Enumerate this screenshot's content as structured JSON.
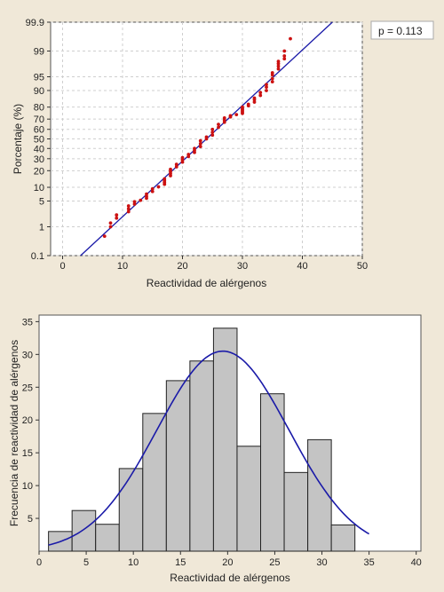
{
  "chart_data": [
    {
      "type": "scatter",
      "subtype": "normal-probability-plot",
      "title": "",
      "xlabel": "Reactividad de alérgenos",
      "ylabel": "Porcentaje (%)",
      "xlim": [
        -2,
        50
      ],
      "xticks": [
        0,
        10,
        20,
        30,
        40,
        50
      ],
      "yscale": "normal-probability",
      "yticks": [
        0.1,
        1,
        5,
        10,
        20,
        30,
        40,
        50,
        60,
        70,
        80,
        90,
        95,
        99,
        99.9
      ],
      "ytick_labels": [
        "0.1",
        "1",
        "5",
        "10",
        "20",
        "30",
        "40",
        "50",
        "60",
        "70",
        "80",
        "90",
        "95",
        "99",
        "99.9"
      ],
      "grid": true,
      "annotation": "p = 0.113",
      "point_color": "#cc1111",
      "fit_color": "#1a1aa8",
      "fit_line": {
        "x": [
          3,
          45
        ],
        "y": [
          0.1,
          99.9
        ]
      },
      "points": [
        {
          "x": 7,
          "y": 0.5
        },
        {
          "x": 8,
          "y": 1.0
        },
        {
          "x": 8,
          "y": 1.3
        },
        {
          "x": 9,
          "y": 1.8
        },
        {
          "x": 9,
          "y": 2.2
        },
        {
          "x": 11,
          "y": 2.7
        },
        {
          "x": 11,
          "y": 3.2
        },
        {
          "x": 11,
          "y": 3.8
        },
        {
          "x": 12,
          "y": 4.2
        },
        {
          "x": 12,
          "y": 4.8
        },
        {
          "x": 13,
          "y": 5.2
        },
        {
          "x": 14,
          "y": 5.8
        },
        {
          "x": 14,
          "y": 6.4
        },
        {
          "x": 14,
          "y": 7.2
        },
        {
          "x": 15,
          "y": 8.2
        },
        {
          "x": 15,
          "y": 9.3
        },
        {
          "x": 16,
          "y": 10.2
        },
        {
          "x": 17,
          "y": 11.5
        },
        {
          "x": 17,
          "y": 12.5
        },
        {
          "x": 17,
          "y": 13.5
        },
        {
          "x": 17,
          "y": 14.5
        },
        {
          "x": 18,
          "y": 16.5
        },
        {
          "x": 18,
          "y": 18
        },
        {
          "x": 18,
          "y": 19.5
        },
        {
          "x": 18,
          "y": 21
        },
        {
          "x": 19,
          "y": 23
        },
        {
          "x": 19,
          "y": 25
        },
        {
          "x": 20,
          "y": 27
        },
        {
          "x": 20,
          "y": 29
        },
        {
          "x": 20,
          "y": 31
        },
        {
          "x": 21,
          "y": 32
        },
        {
          "x": 21,
          "y": 34
        },
        {
          "x": 22,
          "y": 36
        },
        {
          "x": 22,
          "y": 38
        },
        {
          "x": 22,
          "y": 40
        },
        {
          "x": 23,
          "y": 42
        },
        {
          "x": 23,
          "y": 45
        },
        {
          "x": 23,
          "y": 48
        },
        {
          "x": 24,
          "y": 50
        },
        {
          "x": 24,
          "y": 52
        },
        {
          "x": 25,
          "y": 54
        },
        {
          "x": 25,
          "y": 57
        },
        {
          "x": 25,
          "y": 60
        },
        {
          "x": 26,
          "y": 62
        },
        {
          "x": 26,
          "y": 65
        },
        {
          "x": 27,
          "y": 67
        },
        {
          "x": 27,
          "y": 69
        },
        {
          "x": 27,
          "y": 71
        },
        {
          "x": 28,
          "y": 72
        },
        {
          "x": 28,
          "y": 73
        },
        {
          "x": 29,
          "y": 74
        },
        {
          "x": 30,
          "y": 75
        },
        {
          "x": 30,
          "y": 76
        },
        {
          "x": 30,
          "y": 77
        },
        {
          "x": 30,
          "y": 78
        },
        {
          "x": 30,
          "y": 79
        },
        {
          "x": 30,
          "y": 80
        },
        {
          "x": 31,
          "y": 81
        },
        {
          "x": 31,
          "y": 82
        },
        {
          "x": 32,
          "y": 83.5
        },
        {
          "x": 32,
          "y": 85
        },
        {
          "x": 32,
          "y": 86
        },
        {
          "x": 33,
          "y": 87.5
        },
        {
          "x": 33,
          "y": 89
        },
        {
          "x": 34,
          "y": 90
        },
        {
          "x": 34,
          "y": 91.5
        },
        {
          "x": 34,
          "y": 92.5
        },
        {
          "x": 35,
          "y": 93.5
        },
        {
          "x": 35,
          "y": 94.5
        },
        {
          "x": 35,
          "y": 95.5
        },
        {
          "x": 35,
          "y": 96
        },
        {
          "x": 36,
          "y": 96.8
        },
        {
          "x": 36,
          "y": 97.3
        },
        {
          "x": 36,
          "y": 97.7
        },
        {
          "x": 36,
          "y": 98
        },
        {
          "x": 37,
          "y": 98.3
        },
        {
          "x": 37,
          "y": 98.6
        },
        {
          "x": 37,
          "y": 99
        },
        {
          "x": 38,
          "y": 99.6
        }
      ]
    },
    {
      "type": "bar",
      "subtype": "histogram-with-normal-curve",
      "title": "",
      "xlabel": "Reactividad de alérgenos",
      "ylabel": "Frecuencia de reactividad de alérgenos",
      "xlim": [
        0,
        40.5
      ],
      "ylim": [
        0,
        36
      ],
      "xticks": [
        0,
        5,
        10,
        15,
        20,
        25,
        30,
        35,
        40
      ],
      "yticks": [
        5,
        10,
        15,
        20,
        25,
        30,
        35
      ],
      "bar_color": "#c4c4c4",
      "curve_color": "#1a1aa8",
      "bins": [
        {
          "from": 1,
          "to": 3.5,
          "count": 3
        },
        {
          "from": 3.5,
          "to": 6,
          "count": 6.2
        },
        {
          "from": 6,
          "to": 8.5,
          "count": 4.1
        },
        {
          "from": 8.5,
          "to": 11,
          "count": 12.6
        },
        {
          "from": 11,
          "to": 13.5,
          "count": 21
        },
        {
          "from": 13.5,
          "to": 16,
          "count": 26
        },
        {
          "from": 16,
          "to": 18.5,
          "count": 29
        },
        {
          "from": 18.5,
          "to": 21,
          "count": 34
        },
        {
          "from": 21,
          "to": 23.5,
          "count": 16
        },
        {
          "from": 23.5,
          "to": 26,
          "count": 24
        },
        {
          "from": 26,
          "to": 28.5,
          "count": 12
        },
        {
          "from": 28.5,
          "to": 31,
          "count": 17
        },
        {
          "from": 31,
          "to": 33.5,
          "count": 4
        }
      ],
      "normal_curve": {
        "mean": 19.5,
        "sd": 7,
        "peak": 30.5,
        "x_range": [
          1,
          35
        ]
      }
    }
  ]
}
